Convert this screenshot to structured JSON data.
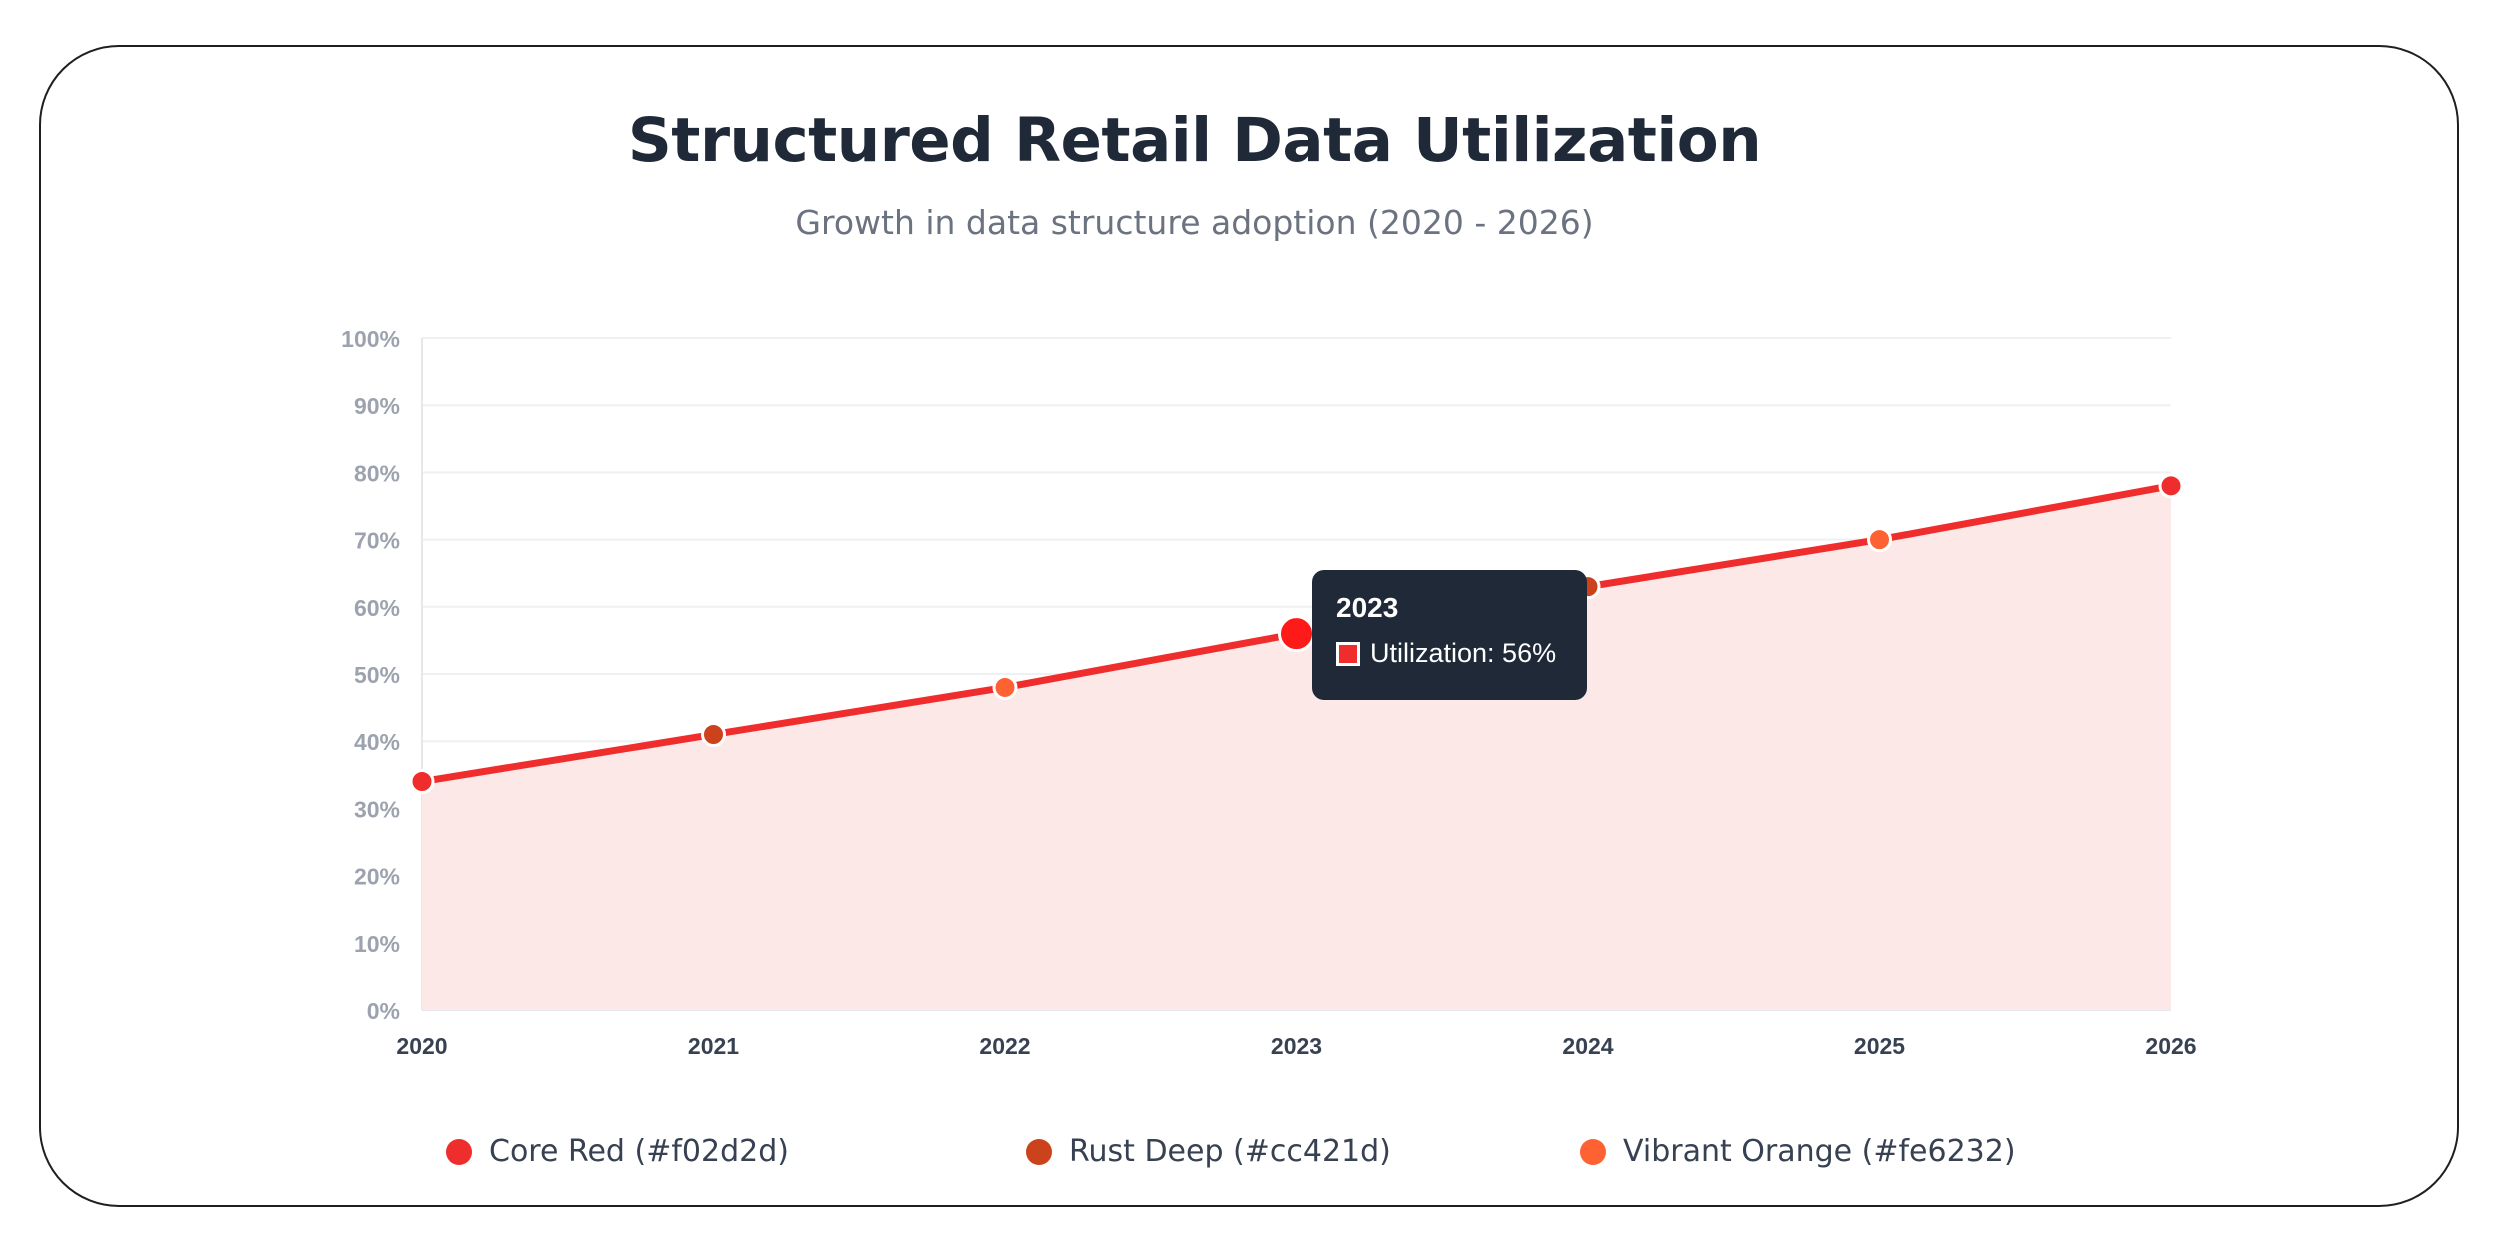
{
  "header": {
    "title": "Structured Retail Data Utilization",
    "subtitle": "Growth in data structure adoption (2020 - 2026)"
  },
  "chart_data": {
    "type": "area",
    "title": "Structured Retail Data Utilization",
    "subtitle": "Growth in data structure adoption (2020 - 2026)",
    "x": [
      "2020",
      "2021",
      "2022",
      "2023",
      "2024",
      "2025",
      "2026"
    ],
    "series": [
      {
        "name": "Utilization",
        "values": [
          34,
          41,
          48,
          56,
          63,
          70,
          78
        ],
        "line_color": "#f02d2d",
        "fill_color": "#fde8e8",
        "point_colors": [
          "#f02d2d",
          "#cc421d",
          "#fe6232",
          "#f02d2d",
          "#cc421d",
          "#fe6232",
          "#f02d2d"
        ]
      }
    ],
    "ylim": [
      0,
      100
    ],
    "y_ticks": [
      "0%",
      "10%",
      "20%",
      "30%",
      "40%",
      "50%",
      "60%",
      "70%",
      "80%",
      "90%",
      "100%"
    ],
    "grid": true,
    "legend_position": "bottom"
  },
  "tooltip": {
    "title": "2023",
    "label": "Utilization: 56%",
    "swatch_color": "#f02d2d"
  },
  "legend": [
    {
      "label": "Core Red (#f02d2d)",
      "color": "#f02d2d"
    },
    {
      "label": "Rust Deep (#cc421d)",
      "color": "#cc421d"
    },
    {
      "label": "Vibrant Orange (#fe6232)",
      "color": "#fe6232"
    }
  ]
}
